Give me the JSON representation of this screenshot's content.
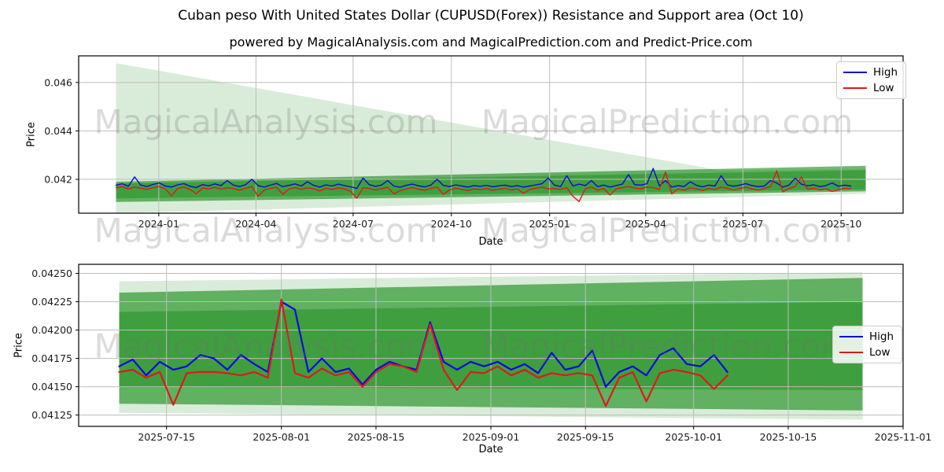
{
  "figure": {
    "title": "Cuban peso With United States Dollar (CUPUSD(Forex)) Resistance and Support area (Oct 10)",
    "subtitle": "powered by MagicalAnalysis.com and MagicalPrediction.com and Predict-Price.com"
  },
  "watermarks": {
    "left_text": "MagicalAnalysis.com",
    "right_text": "MagicalPrediction.com"
  },
  "legend": {
    "high_label": "High",
    "low_label": "Low"
  },
  "colors": {
    "high_line": "#0b0bd6",
    "low_line": "#dc1a1a",
    "band_green": "#008000",
    "grid": "#bdbdbd",
    "spine": "#000000",
    "tick_text": "#1a1a1a"
  },
  "chart_data": [
    {
      "type": "line",
      "xlabel": "Date",
      "ylabel": "Price",
      "x_range": [
        "2023-10-18",
        "2025-11-28"
      ],
      "y_range": [
        0.0406,
        0.0471
      ],
      "grid": true,
      "legend_position": "upper-right",
      "x_ticks": [
        {
          "date": "2024-01-01",
          "label": "2024-01"
        },
        {
          "date": "2024-04-01",
          "label": "2024-04"
        },
        {
          "date": "2024-07-01",
          "label": "2024-07"
        },
        {
          "date": "2024-10-01",
          "label": "2024-10"
        },
        {
          "date": "2025-01-01",
          "label": "2025-01"
        },
        {
          "date": "2025-04-01",
          "label": "2025-04"
        },
        {
          "date": "2025-07-01",
          "label": "2025-07"
        },
        {
          "date": "2025-10-01",
          "label": "2025-10"
        }
      ],
      "y_ticks": [
        {
          "value": 0.042,
          "label": "0.042"
        },
        {
          "value": 0.044,
          "label": "0.044"
        },
        {
          "value": 0.046,
          "label": "0.046"
        }
      ],
      "bands": [
        {
          "name": "outer-resistance-support-area",
          "alpha": 0.15,
          "points": [
            [
              "2023-11-22",
              0.0468
            ],
            [
              "2025-06-10",
              0.04237
            ],
            [
              "2025-10-24",
              0.04244
            ],
            [
              "2025-10-24",
              0.0414
            ],
            [
              "2023-11-22",
              0.0406
            ]
          ]
        },
        {
          "name": "middle-support-channel",
          "alpha": 0.55,
          "points": [
            [
              "2023-11-22",
              0.0419
            ],
            [
              "2025-10-24",
              0.04256
            ],
            [
              "2025-10-24",
              0.0415
            ],
            [
              "2023-11-22",
              0.04106
            ]
          ]
        },
        {
          "name": "core-support-channel",
          "alpha": 0.35,
          "points": [
            [
              "2023-11-22",
              0.04183
            ],
            [
              "2025-10-24",
              0.04238
            ],
            [
              "2025-10-24",
              0.04158
            ],
            [
              "2023-11-22",
              0.04121
            ]
          ]
        }
      ],
      "series": [
        {
          "name": "High",
          "start": "2023-11-22",
          "end": "2025-10-10",
          "width": 1.4,
          "values": [
            0.04175,
            0.04182,
            0.04171,
            0.0421,
            0.04176,
            0.0417,
            0.04179,
            0.04185,
            0.04172,
            0.04168,
            0.04177,
            0.04182,
            0.04171,
            0.04166,
            0.04178,
            0.04173,
            0.04181,
            0.04174,
            0.04195,
            0.04176,
            0.0417,
            0.04178,
            0.042,
            0.04174,
            0.04168,
            0.04176,
            0.04183,
            0.0417,
            0.04175,
            0.04181,
            0.04172,
            0.0419,
            0.04175,
            0.04168,
            0.04177,
            0.04172,
            0.0418,
            0.04174,
            0.04169,
            0.04162,
            0.04205,
            0.04178,
            0.04171,
            0.04176,
            0.04195,
            0.04172,
            0.04167,
            0.04175,
            0.0418,
            0.04173,
            0.04169,
            0.04176,
            0.042,
            0.04175,
            0.0417,
            0.04177,
            0.04172,
            0.04168,
            0.04174,
            0.04171,
            0.04175,
            0.04169,
            0.04173,
            0.04176,
            0.0417,
            0.04174,
            0.04168,
            0.04172,
            0.04177,
            0.04182,
            0.04205,
            0.04176,
            0.0417,
            0.04215,
            0.04172,
            0.0418,
            0.04174,
            0.04195,
            0.0417,
            0.04176,
            0.04168,
            0.04174,
            0.0418,
            0.0422,
            0.04178,
            0.04176,
            0.04182,
            0.04245,
            0.04173,
            0.04195,
            0.04168,
            0.04174,
            0.0417,
            0.0419,
            0.04175,
            0.04169,
            0.04176,
            0.04172,
            0.04215,
            0.04177,
            0.04171,
            0.04176,
            0.04182,
            0.04174,
            0.0417,
            0.04172,
            0.04195,
            0.04185,
            0.04168,
            0.04176,
            0.04205,
            0.0418,
            0.04173,
            0.04177,
            0.0417,
            0.04174,
            0.04185,
            0.04171,
            0.04176,
            0.04172
          ]
        },
        {
          "name": "Low",
          "start": "2023-11-22",
          "end": "2025-10-10",
          "width": 1.4,
          "values": [
            0.04165,
            0.0417,
            0.0416,
            0.04168,
            0.04163,
            0.04158,
            0.04166,
            0.0417,
            0.0416,
            0.04132,
            0.04162,
            0.04168,
            0.04158,
            0.0414,
            0.04164,
            0.0416,
            0.04167,
            0.04159,
            0.04165,
            0.04162,
            0.04155,
            0.04163,
            0.0417,
            0.0413,
            0.04156,
            0.04162,
            0.04168,
            0.04138,
            0.0416,
            0.04166,
            0.04158,
            0.04165,
            0.04161,
            0.04152,
            0.04163,
            0.04158,
            0.04165,
            0.0416,
            0.0415,
            0.04122,
            0.04165,
            0.04162,
            0.04156,
            0.04161,
            0.04167,
            0.0414,
            0.04153,
            0.0416,
            0.04166,
            0.04159,
            0.04155,
            0.04162,
            0.04168,
            0.04138,
            0.04156,
            0.04163,
            0.04158,
            0.04154,
            0.0416,
            0.04157,
            0.04162,
            0.04155,
            0.04159,
            0.04163,
            0.04156,
            0.0416,
            0.04142,
            0.04158,
            0.04163,
            0.04168,
            0.0416,
            0.04162,
            0.04158,
            0.04165,
            0.0413,
            0.04108,
            0.0416,
            0.04168,
            0.04155,
            0.04162,
            0.04135,
            0.0416,
            0.04166,
            0.0417,
            0.04164,
            0.04161,
            0.04168,
            0.04166,
            0.04158,
            0.0423,
            0.0414,
            0.0416,
            0.04155,
            0.04165,
            0.04161,
            0.04154,
            0.04162,
            0.04158,
            0.04168,
            0.04163,
            0.04156,
            0.04162,
            0.04168,
            0.0416,
            0.04155,
            0.04162,
            0.0417,
            0.04235,
            0.04148,
            0.04162,
            0.0417,
            0.0421,
            0.04158,
            0.04163,
            0.04156,
            0.0416,
            0.0415,
            0.04157,
            0.04162,
            0.0416
          ]
        }
      ]
    },
    {
      "type": "line",
      "xlabel": "Date",
      "ylabel": "Price",
      "x_range": [
        "2025-07-02",
        "2025-11-01"
      ],
      "y_range": [
        0.04115,
        0.04258
      ],
      "grid": true,
      "legend_position": "center-right",
      "x_ticks": [
        {
          "date": "2025-07-15",
          "label": "2025-07-15"
        },
        {
          "date": "2025-08-01",
          "label": "2025-08-01"
        },
        {
          "date": "2025-08-15",
          "label": "2025-08-15"
        },
        {
          "date": "2025-09-01",
          "label": "2025-09-01"
        },
        {
          "date": "2025-09-15",
          "label": "2025-09-15"
        },
        {
          "date": "2025-10-01",
          "label": "2025-10-01"
        },
        {
          "date": "2025-10-15",
          "label": "2025-10-15"
        },
        {
          "date": "2025-11-01",
          "label": "2025-11-01"
        }
      ],
      "y_ticks": [
        {
          "value": 0.04125,
          "label": "0.04125"
        },
        {
          "value": 0.0415,
          "label": "0.04150"
        },
        {
          "value": 0.04175,
          "label": "0.04175"
        },
        {
          "value": 0.042,
          "label": "0.04200"
        },
        {
          "value": 0.04225,
          "label": "0.04225"
        },
        {
          "value": 0.0425,
          "label": "0.04250"
        }
      ],
      "bands": [
        {
          "name": "outer-resistance-support-area",
          "alpha": 0.15,
          "points": [
            [
              "2025-07-08",
              0.04243
            ],
            [
              "2025-10-26",
              0.04251
            ],
            [
              "2025-10-26",
              0.04121
            ],
            [
              "2025-07-08",
              0.04127
            ]
          ]
        },
        {
          "name": "middle-support-channel",
          "alpha": 0.55,
          "points": [
            [
              "2025-07-08",
              0.04233
            ],
            [
              "2025-10-26",
              0.04246
            ],
            [
              "2025-10-26",
              0.04129
            ],
            [
              "2025-07-08",
              0.04135
            ]
          ]
        },
        {
          "name": "core-support-channel",
          "alpha": 0.35,
          "points": [
            [
              "2025-07-08",
              0.04216
            ],
            [
              "2025-10-26",
              0.04225
            ],
            [
              "2025-10-26",
              0.04147
            ],
            [
              "2025-07-08",
              0.0415
            ]
          ]
        }
      ],
      "series": [
        {
          "name": "High",
          "start": "2025-07-08",
          "end": "2025-10-06",
          "width": 2.2,
          "values": [
            0.04168,
            0.04174,
            0.0416,
            0.04172,
            0.04165,
            0.04168,
            0.04178,
            0.04175,
            0.04165,
            0.04178,
            0.0417,
            0.04163,
            0.04225,
            0.04218,
            0.04163,
            0.04175,
            0.04163,
            0.04166,
            0.04152,
            0.04165,
            0.04172,
            0.04168,
            0.04165,
            0.04207,
            0.04172,
            0.04165,
            0.04172,
            0.04168,
            0.04172,
            0.04165,
            0.0417,
            0.04162,
            0.0418,
            0.04165,
            0.04168,
            0.04182,
            0.0415,
            0.04163,
            0.04168,
            0.0416,
            0.04178,
            0.04184,
            0.0417,
            0.04168,
            0.04178,
            0.04163
          ]
        },
        {
          "name": "Low",
          "start": "2025-07-08",
          "end": "2025-10-06",
          "width": 2.2,
          "values": [
            0.04163,
            0.04165,
            0.04158,
            0.04163,
            0.04134,
            0.04162,
            0.04163,
            0.04163,
            0.04162,
            0.0416,
            0.04163,
            0.04158,
            0.04227,
            0.04162,
            0.04158,
            0.04166,
            0.0416,
            0.04163,
            0.0415,
            0.04163,
            0.0417,
            0.04168,
            0.04163,
            0.04205,
            0.04165,
            0.04147,
            0.04163,
            0.04162,
            0.04168,
            0.0416,
            0.04165,
            0.04158,
            0.04162,
            0.0416,
            0.04162,
            0.0416,
            0.04133,
            0.04158,
            0.04163,
            0.04137,
            0.04162,
            0.04165,
            0.04163,
            0.0416,
            0.04148,
            0.0416
          ]
        }
      ]
    }
  ]
}
